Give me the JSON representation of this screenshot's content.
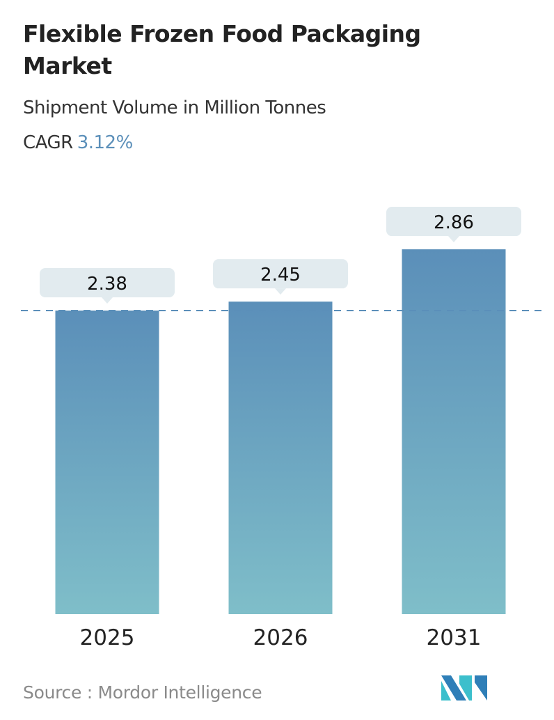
{
  "header": {
    "title": "Flexible Frozen Food Packaging Market",
    "subtitle": "Shipment Volume in Million Tonnes",
    "cagr_label": "CAGR",
    "cagr_value": "3.12%"
  },
  "chart_data": {
    "type": "bar",
    "categories": [
      "2025",
      "2026",
      "2031"
    ],
    "values": [
      2.38,
      2.45,
      2.86
    ],
    "data_labels": [
      "2.38",
      "2.45",
      "2.86"
    ],
    "ylim": [
      0,
      2.86
    ],
    "reference_line": 2.38,
    "grid": false,
    "colors": {
      "bar_top": "#5b8fb9",
      "bar_bottom": "#7fbec9",
      "label_box": "#e2ebef",
      "reference_line": "#5b8fb9"
    }
  },
  "footer": {
    "source": "Source :  Mordor Intelligence",
    "logo_text": "Mordor Intelligence"
  }
}
